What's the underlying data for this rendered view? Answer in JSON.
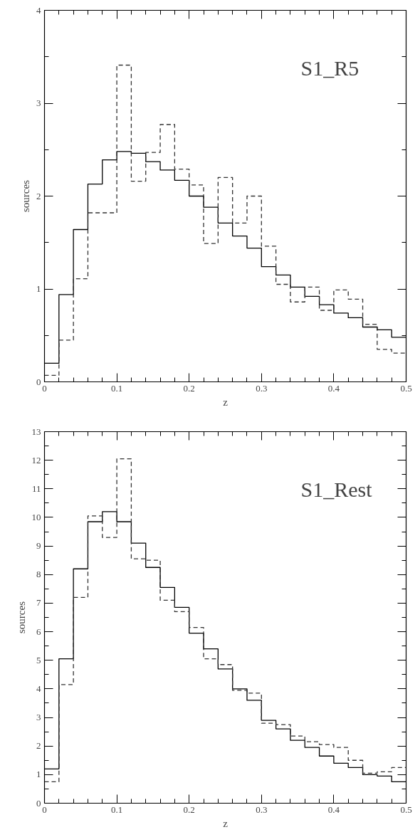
{
  "chart_data": [
    {
      "type": "histogram",
      "xlabel": "z",
      "ylabel": "sources",
      "annotations": [
        "S1_R5"
      ],
      "bins": [
        0,
        0.02,
        0.04,
        0.06,
        0.08,
        0.1,
        0.12,
        0.14,
        0.16,
        0.18,
        0.2,
        0.22,
        0.24,
        0.26,
        0.28,
        0.3,
        0.32,
        0.34,
        0.36,
        0.38,
        0.4,
        0.42,
        0.44,
        0.46,
        0.48,
        0.5
      ],
      "series": [
        {
          "color": "#000000",
          "line_style": "solid",
          "values": [
            0.2,
            0.94,
            1.64,
            2.13,
            2.39,
            2.48,
            2.46,
            2.37,
            2.28,
            2.17,
            2.0,
            1.88,
            1.71,
            1.57,
            1.44,
            1.24,
            1.15,
            1.02,
            0.92,
            0.83,
            0.74,
            0.69,
            0.59,
            0.56,
            0.48
          ]
        },
        {
          "color": "#333333",
          "line_style": "dashed",
          "values": [
            0.07,
            0.45,
            1.11,
            1.82,
            1.82,
            3.41,
            2.16,
            2.47,
            2.77,
            2.29,
            2.12,
            1.49,
            2.2,
            1.71,
            2.0,
            1.46,
            1.05,
            0.86,
            1.02,
            0.77,
            0.99,
            0.89,
            0.62,
            0.35,
            0.31
          ]
        }
      ],
      "xlim": [
        0,
        0.5
      ],
      "ylim": [
        0,
        4
      ],
      "xticks": [
        0,
        {
          "value": 0.02,
          "label": null
        },
        {
          "value": 0.04,
          "label": null
        },
        {
          "value": 0.06,
          "label": null
        },
        {
          "value": 0.08,
          "label": null
        },
        0.1,
        {
          "value": 0.12,
          "label": null
        },
        {
          "value": 0.14,
          "label": null
        },
        {
          "value": 0.16,
          "label": null
        },
        {
          "value": 0.18,
          "label": null
        },
        0.2,
        {
          "value": 0.22,
          "label": null
        },
        {
          "value": 0.24,
          "label": null
        },
        {
          "value": 0.26,
          "label": null
        },
        {
          "value": 0.28,
          "label": null
        },
        0.3,
        {
          "value": 0.32,
          "label": null
        },
        {
          "value": 0.34,
          "label": null
        },
        {
          "value": 0.36,
          "label": null
        },
        {
          "value": 0.38,
          "label": null
        },
        0.4,
        {
          "value": 0.42,
          "label": null
        },
        {
          "value": 0.44,
          "label": null
        },
        {
          "value": 0.46,
          "label": null
        },
        {
          "value": 0.48,
          "label": null
        },
        0.5
      ],
      "yticks": [
        0,
        {
          "value": 0.5,
          "label": null
        },
        1,
        {
          "value": 1.5,
          "label": null
        },
        2,
        {
          "value": 2.5,
          "label": null
        },
        3,
        {
          "value": 3.5,
          "label": null
        },
        4
      ],
      "grid": false
    },
    {
      "type": "histogram",
      "xlabel": "z",
      "ylabel": "sources",
      "annotations": [
        "S1_Rest"
      ],
      "bins": [
        0,
        0.02,
        0.04,
        0.06,
        0.08,
        0.1,
        0.12,
        0.14,
        0.16,
        0.18,
        0.2,
        0.22,
        0.24,
        0.26,
        0.28,
        0.3,
        0.32,
        0.34,
        0.36,
        0.38,
        0.4,
        0.42,
        0.44,
        0.46,
        0.48,
        0.5
      ],
      "series": [
        {
          "color": "#000000",
          "line_style": "solid",
          "values": [
            1.2,
            5.05,
            8.2,
            9.85,
            10.2,
            9.85,
            9.1,
            8.25,
            7.55,
            6.85,
            5.95,
            5.4,
            4.7,
            4.0,
            3.6,
            2.9,
            2.6,
            2.2,
            1.95,
            1.65,
            1.4,
            1.25,
            1.0,
            0.95,
            0.75
          ]
        },
        {
          "color": "#333333",
          "line_style": "dashed",
          "values": [
            0.75,
            4.15,
            7.2,
            10.05,
            9.3,
            12.05,
            8.55,
            8.5,
            7.1,
            6.7,
            6.15,
            5.05,
            4.85,
            3.95,
            3.85,
            2.8,
            2.75,
            2.35,
            2.15,
            2.05,
            1.95,
            1.5,
            1.05,
            1.1,
            1.25
          ]
        }
      ],
      "xlim": [
        0,
        0.5
      ],
      "ylim": [
        0,
        13
      ],
      "xticks": [
        0,
        {
          "value": 0.02,
          "label": null
        },
        {
          "value": 0.04,
          "label": null
        },
        {
          "value": 0.06,
          "label": null
        },
        {
          "value": 0.08,
          "label": null
        },
        0.1,
        {
          "value": 0.12,
          "label": null
        },
        {
          "value": 0.14,
          "label": null
        },
        {
          "value": 0.16,
          "label": null
        },
        {
          "value": 0.18,
          "label": null
        },
        0.2,
        {
          "value": 0.22,
          "label": null
        },
        {
          "value": 0.24,
          "label": null
        },
        {
          "value": 0.26,
          "label": null
        },
        {
          "value": 0.28,
          "label": null
        },
        0.3,
        {
          "value": 0.32,
          "label": null
        },
        {
          "value": 0.34,
          "label": null
        },
        {
          "value": 0.36,
          "label": null
        },
        {
          "value": 0.38,
          "label": null
        },
        0.4,
        {
          "value": 0.42,
          "label": null
        },
        {
          "value": 0.44,
          "label": null
        },
        {
          "value": 0.46,
          "label": null
        },
        {
          "value": 0.48,
          "label": null
        },
        0.5
      ],
      "yticks": [
        0,
        {
          "value": 0.5,
          "label": null
        },
        1,
        {
          "value": 1.5,
          "label": null
        },
        2,
        {
          "value": 2.5,
          "label": null
        },
        3,
        {
          "value": 3.5,
          "label": null
        },
        4,
        {
          "value": 4.5,
          "label": null
        },
        5,
        {
          "value": 5.5,
          "label": null
        },
        6,
        {
          "value": 6.5,
          "label": null
        },
        7,
        {
          "value": 7.5,
          "label": null
        },
        8,
        {
          "value": 8.5,
          "label": null
        },
        9,
        {
          "value": 9.5,
          "label": null
        },
        10,
        {
          "value": 10.5,
          "label": null
        },
        11,
        {
          "value": 11.5,
          "label": null
        },
        12,
        {
          "value": 12.5,
          "label": null
        },
        13
      ],
      "grid": false
    }
  ]
}
